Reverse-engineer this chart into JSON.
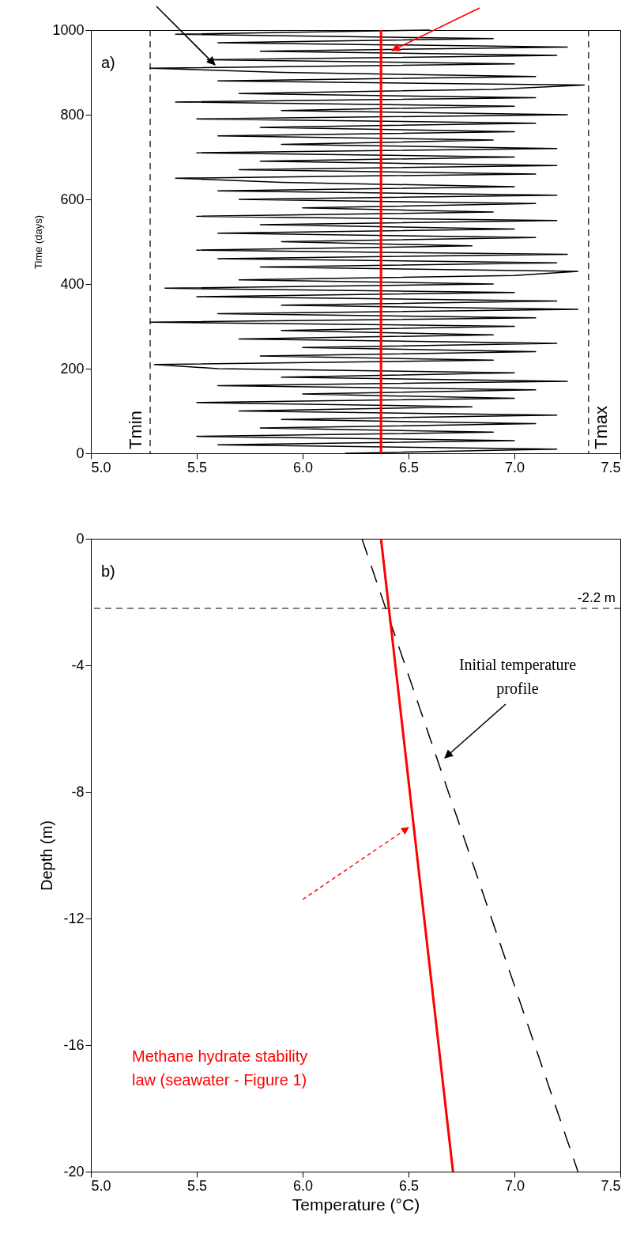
{
  "chart_data": [
    {
      "type": "line",
      "ylabel": "Time (days)",
      "xlim": [
        5,
        7.5
      ],
      "ylim": [
        0,
        1000
      ],
      "xticks": [
        {
          "value": 5,
          "label": "5.0"
        },
        {
          "value": 5.5,
          "label": "5.5"
        },
        {
          "value": 6,
          "label": "6.0"
        },
        {
          "value": 6.5,
          "label": "6.5"
        },
        {
          "value": 7,
          "label": "7.0"
        },
        {
          "value": 7.5,
          "label": "7.5"
        }
      ],
      "yticks": [
        0,
        200,
        400,
        600,
        800,
        1000
      ],
      "grid": false,
      "marker": "none",
      "series": [
        {
          "color": "#000000",
          "line_style": "solid",
          "x": [
            6.2,
            7.2,
            5.6,
            7.0,
            5.5,
            6.9,
            5.8,
            7.1,
            5.9,
            7.2,
            5.7,
            6.8,
            5.5,
            7.0,
            6.0,
            7.1,
            5.6,
            7.25,
            5.9,
            7.0,
            5.6,
            5.3,
            6.9,
            5.8,
            7.1,
            6.0,
            7.2,
            5.7,
            6.9,
            5.9,
            7.0,
            5.28,
            7.1,
            5.6,
            7.3,
            5.9,
            7.2,
            5.5,
            7.0,
            5.35,
            6.9,
            5.7,
            7.0,
            7.3,
            5.8,
            7.2,
            5.6,
            7.25,
            5.5,
            6.8,
            5.9,
            7.1,
            5.6,
            7.0,
            5.8,
            7.2,
            5.5,
            6.9,
            6.0,
            7.1,
            5.7,
            7.2,
            5.6,
            7.0,
            5.9,
            5.4,
            7.1,
            5.7,
            7.2,
            5.8,
            7.0,
            5.5,
            7.2,
            5.9,
            6.9,
            5.6,
            7.0,
            5.8,
            7.1,
            5.5,
            7.25,
            5.9,
            7.0,
            5.4,
            7.1,
            5.7,
            6.9,
            7.33,
            5.6,
            7.1,
            5.9,
            5.28,
            7.0,
            5.55,
            7.2,
            5.8,
            7.25,
            5.6,
            6.9,
            5.4,
            6.6
          ],
          "values": [
            0,
            10,
            20,
            30,
            40,
            50,
            60,
            70,
            80,
            90,
            100,
            110,
            120,
            130,
            140,
            150,
            160,
            170,
            180,
            190,
            200,
            210,
            220,
            230,
            240,
            250,
            260,
            270,
            280,
            290,
            300,
            310,
            320,
            330,
            340,
            350,
            360,
            370,
            380,
            390,
            400,
            410,
            420,
            430,
            440,
            450,
            460,
            470,
            480,
            490,
            500,
            510,
            520,
            530,
            540,
            550,
            560,
            570,
            580,
            590,
            600,
            610,
            620,
            630,
            640,
            650,
            660,
            670,
            680,
            690,
            700,
            710,
            720,
            730,
            740,
            750,
            760,
            770,
            780,
            790,
            800,
            810,
            820,
            830,
            840,
            850,
            860,
            870,
            880,
            890,
            900,
            910,
            920,
            930,
            940,
            950,
            960,
            970,
            980,
            990,
            1000
          ]
        }
      ],
      "ref_lines": [
        {
          "axis": "x",
          "value": 6.37,
          "color": "#ff0000",
          "line_style": "solid"
        },
        {
          "axis": "x",
          "value": 5.28,
          "label": "Tmin",
          "color": "#000000",
          "line_style": "dashed"
        },
        {
          "axis": "x",
          "value": 7.35,
          "label": "Tmax",
          "color": "#000000",
          "line_style": "dashed"
        }
      ],
      "annotations": [
        "a)"
      ]
    },
    {
      "type": "line",
      "xlabel": "Temperature (°C)",
      "ylabel": "Depth (m)",
      "xlim": [
        5,
        7.5
      ],
      "ylim": [
        -20,
        0
      ],
      "xticks": [
        {
          "value": 5,
          "label": "5.0"
        },
        {
          "value": 5.5,
          "label": "5.5"
        },
        {
          "value": 6,
          "label": "6.0"
        },
        {
          "value": 6.5,
          "label": "6.5"
        },
        {
          "value": 7,
          "label": "7.0"
        },
        {
          "value": 7.5,
          "label": "7.5"
        }
      ],
      "yticks": [
        0,
        -4,
        -8,
        -12,
        -16,
        -20
      ],
      "grid": false,
      "marker": "none",
      "series": [
        {
          "color": "#000000",
          "line_style": "dashed",
          "x": [
            6.28,
            7.3
          ],
          "values": [
            0,
            -20
          ]
        },
        {
          "color": "#ff0000",
          "line_style": "solid",
          "x": [
            6.37,
            6.71
          ],
          "values": [
            0,
            -20
          ]
        }
      ],
      "ref_lines": [
        {
          "axis": "y",
          "value": -2.2,
          "label": "-2.2 m",
          "color": "#000000",
          "line_style": "dashed"
        }
      ],
      "annotations": [
        "b)",
        "Initial temperature\nprofile",
        "Methane hydrate stability\nlaw (seawater - Figure 1)"
      ]
    }
  ]
}
